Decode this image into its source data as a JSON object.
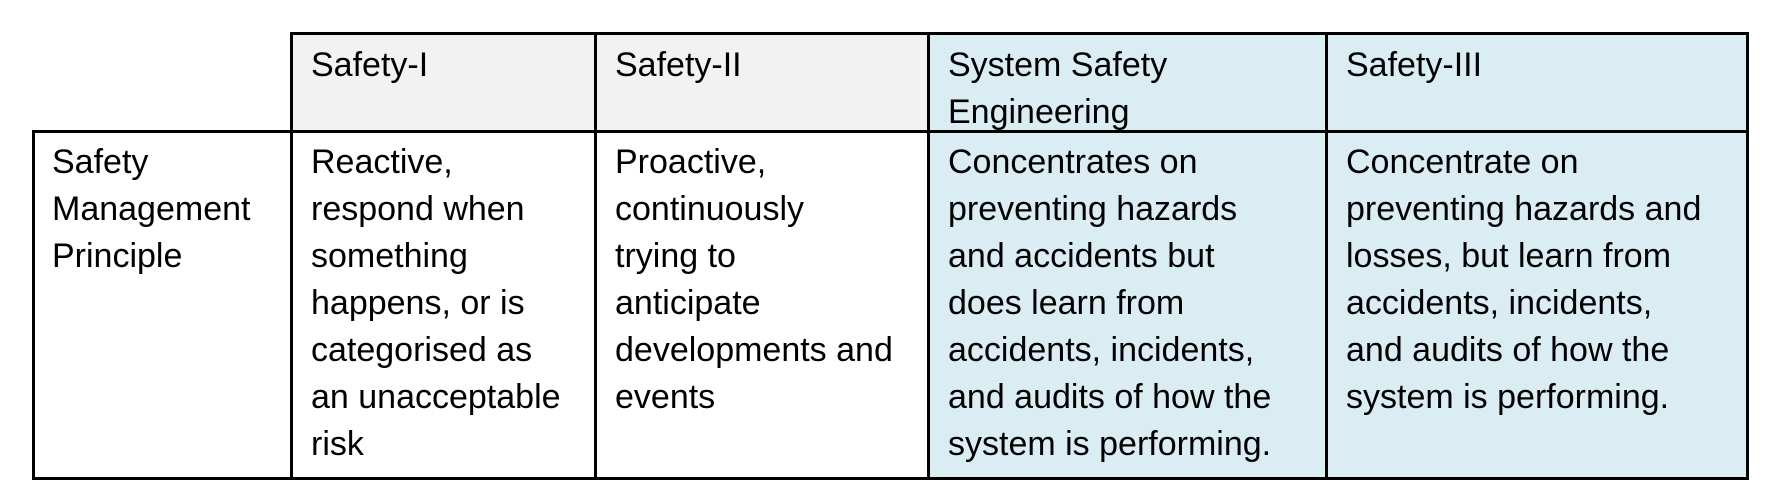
{
  "table": {
    "headers": {
      "col1": "Safety-I",
      "col2": "Safety-II",
      "col3": "System Safety\nEngineering",
      "col4": "Safety-III"
    },
    "row": {
      "label": "Safety\nManagement\nPrinciple",
      "col1": "Reactive,\nrespond when\nsomething\nhappens, or is\ncategorised as\nan unacceptable\nrisk",
      "col2": "Proactive,\ncontinuously\ntrying to\nanticipate\ndevelopments and\nevents",
      "col3": "Concentrates on\npreventing hazards\nand accidents but\ndoes learn from\naccidents, incidents,\nand audits of how the\nsystem is performing.",
      "col4": "Concentrate on\npreventing hazards and\nlosses, but learn from\naccidents, incidents,\nand audits of how the\nsystem is performing."
    }
  },
  "colors": {
    "header_gray": "#f2f2f2",
    "light_blue": "#daedf3",
    "border": "#000000"
  }
}
